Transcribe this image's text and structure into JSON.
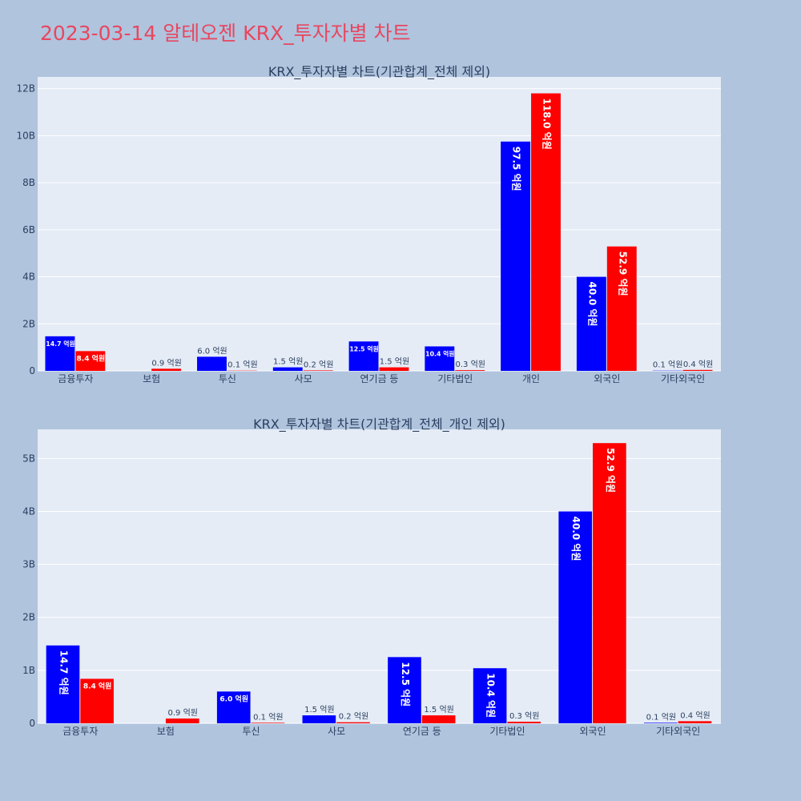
{
  "page": {
    "title": "2023-03-14 알테오젠 KRX_투자자별 차트"
  },
  "chart_data": [
    {
      "type": "bar",
      "title": "KRX_투자자별 차트(기관합계_전체 제외)",
      "categories": [
        "금융투자",
        "보험",
        "투신",
        "사모",
        "연기금 등",
        "기타법인",
        "개인",
        "외국인",
        "기타외국인"
      ],
      "series": [
        {
          "color": "#0000ff",
          "values": [
            1.47,
            0.0,
            0.6,
            0.15,
            1.25,
            1.04,
            9.75,
            4.0,
            0.01
          ],
          "labels": [
            "14.7 억원",
            "",
            "6.0 억원",
            "1.5 억원",
            "12.5 억원",
            "10.4 억원",
            "97.5 억원",
            "40.0 억원",
            "0.1 억원"
          ]
        },
        {
          "color": "#ff0000",
          "values": [
            0.84,
            0.09,
            0.01,
            0.02,
            0.15,
            0.03,
            11.8,
            5.29,
            0.04
          ],
          "labels": [
            "8.4 억원",
            "0.9 억원",
            "0.1 억원",
            "0.2 억원",
            "1.5 억원",
            "0.3 억원",
            "118.0 억원",
            "52.9 억원",
            "0.4 억원"
          ]
        }
      ],
      "ylim": [
        0,
        12.5
      ],
      "yticks": [
        0,
        2,
        4,
        6,
        8,
        10,
        12
      ],
      "yticklabels": [
        "0",
        "2B",
        "4B",
        "6B",
        "8B",
        "10B",
        "12B"
      ],
      "grid": true
    },
    {
      "type": "bar",
      "title": "KRX_투자자별 차트(기관합계_전체_개인 제외)",
      "categories": [
        "금융투자",
        "보험",
        "투신",
        "사모",
        "연기금 등",
        "기타법인",
        "외국인",
        "기타외국인"
      ],
      "series": [
        {
          "color": "#0000ff",
          "values": [
            1.47,
            0.0,
            0.6,
            0.15,
            1.25,
            1.04,
            4.0,
            0.01
          ],
          "labels": [
            "14.7 억원",
            "",
            "6.0 억원",
            "1.5 억원",
            "12.5 억원",
            "10.4 억원",
            "40.0 억원",
            "0.1 억원"
          ]
        },
        {
          "color": "#ff0000",
          "values": [
            0.84,
            0.09,
            0.01,
            0.02,
            0.15,
            0.03,
            5.29,
            0.04
          ],
          "labels": [
            "8.4 억원",
            "0.9 억원",
            "0.1 억원",
            "0.2 억원",
            "1.5 억원",
            "0.3 억원",
            "52.9 억원",
            "0.4 억원"
          ]
        }
      ],
      "ylim": [
        0,
        5.55
      ],
      "yticks": [
        0,
        1,
        2,
        3,
        4,
        5
      ],
      "yticklabels": [
        "0",
        "1B",
        "2B",
        "3B",
        "4B",
        "5B"
      ],
      "grid": true
    }
  ]
}
